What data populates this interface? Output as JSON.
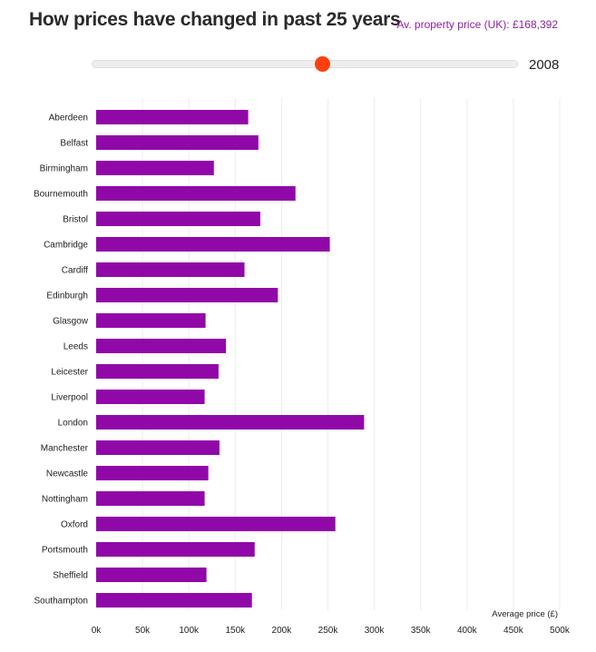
{
  "header": {
    "title": "How prices have changed in past 25 years",
    "avg_price": "Av. property price (UK): £168,392"
  },
  "slider": {
    "year": "2008",
    "position": 0.54
  },
  "colors": {
    "bar": "#9108a8",
    "thumb": "#ff3f0f",
    "avg": "#8e1fa3"
  },
  "chart_data": {
    "type": "bar",
    "orientation": "horizontal",
    "title": "",
    "xlabel": "Average price (£)",
    "ylabel": "",
    "xlim": [
      0,
      500000
    ],
    "xticks": [
      0,
      50000,
      100000,
      150000,
      200000,
      250000,
      300000,
      350000,
      400000,
      450000,
      500000
    ],
    "xtick_labels": [
      "0k",
      "50k",
      "100k",
      "150k",
      "200k",
      "250k",
      "300k",
      "350k",
      "400k",
      "450k",
      "500k"
    ],
    "grid": true,
    "categories": [
      "Aberdeen",
      "Belfast",
      "Birmingham",
      "Bournemouth",
      "Bristol",
      "Cambridge",
      "Cardiff",
      "Edinburgh",
      "Glasgow",
      "Leeds",
      "Leicester",
      "Liverpool",
      "London",
      "Manchester",
      "Newcastle",
      "Nottingham",
      "Oxford",
      "Portsmouth",
      "Sheffield",
      "Southampton"
    ],
    "values": [
      164000,
      175000,
      127000,
      215000,
      177000,
      252000,
      160000,
      196000,
      118000,
      140000,
      132000,
      117000,
      289000,
      133000,
      121000,
      117000,
      258000,
      171000,
      119000,
      168000
    ]
  }
}
